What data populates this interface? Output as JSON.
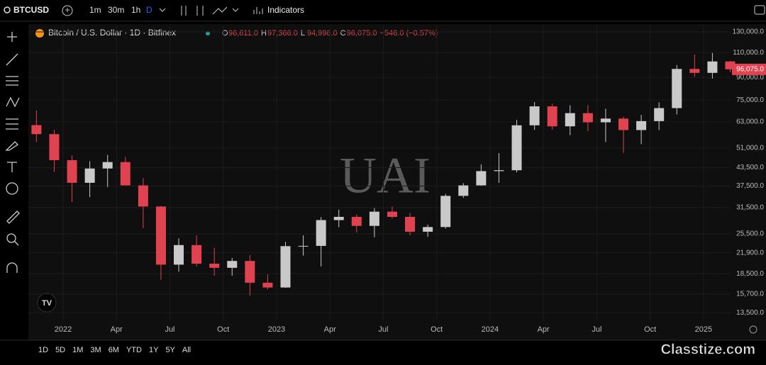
{
  "toolbar": {
    "symbol": "BTCUSD",
    "intervals": [
      "1m",
      "30m",
      "1h",
      "D"
    ],
    "indicators": "Indicators"
  },
  "legend": {
    "title": "Bitcoin / U.S. Dollar · 1D · Bitfinex",
    "ohlc": [
      {
        "key": "O",
        "text": "96,611.0"
      },
      {
        "key": "H",
        "text": "97,366.0"
      },
      {
        "key": "L",
        "text": "94,996.0"
      },
      {
        "key": "C",
        "text": "96,075.0"
      }
    ],
    "change": "−546.0 (−0.57%)"
  },
  "watermark": "UAI",
  "site_watermark": "Classtize.com",
  "ranges": [
    "1D",
    "5D",
    "1M",
    "3M",
    "6M",
    "YTD",
    "1Y",
    "5Y",
    "All"
  ],
  "chart_data": {
    "type": "candlestick",
    "log_scale": true,
    "grid": true,
    "up_color": "#c9c9c9",
    "down_color": "#e0434f",
    "last_price_label": "96,075.0",
    "categories": [
      null,
      null,
      "2022",
      null,
      null,
      "Apr",
      null,
      null,
      "Jul",
      null,
      null,
      "Oct",
      null,
      null,
      "2023",
      null,
      null,
      "Apr",
      null,
      null,
      "Jul",
      null,
      null,
      "Oct",
      null,
      null,
      "2024",
      null,
      null,
      "Apr",
      null,
      null,
      "Jul",
      null,
      null,
      "Oct",
      null,
      null,
      "2025",
      null
    ],
    "open": [
      61300,
      57000,
      46200,
      38500,
      43200,
      45500,
      37700,
      31800,
      19900,
      23300,
      20050,
      19400,
      20500,
      17200,
      16550,
      23100,
      23150,
      28500,
      29250,
      27200,
      30500,
      29250,
      25950,
      26950,
      34650,
      37700,
      42300,
      42600,
      61200,
      71300,
      60700,
      67500,
      62700,
      64600,
      58900,
      63300,
      70300,
      96400,
      93400,
      102400
    ],
    "high": [
      69000,
      59000,
      48000,
      45800,
      48200,
      47400,
      40000,
      31900,
      24600,
      25200,
      22800,
      21000,
      21500,
      18400,
      23900,
      25200,
      29200,
      31000,
      29800,
      31400,
      31800,
      30200,
      27500,
      35200,
      38400,
      44700,
      48900,
      63900,
      73800,
      72800,
      71900,
      72000,
      70000,
      65600,
      66500,
      73600,
      99500,
      108300,
      109600,
      102800
    ],
    "low": [
      53500,
      42000,
      33000,
      34300,
      37200,
      37700,
      26700,
      17600,
      18800,
      19600,
      18200,
      18200,
      15500,
      16300,
      16500,
      21400,
      19600,
      26900,
      25800,
      24800,
      28900,
      25200,
      24900,
      26600,
      34100,
      37600,
      38500,
      41900,
      59000,
      59100,
      56500,
      58400,
      53500,
      49000,
      52600,
      58900,
      66800,
      90500,
      89200,
      94000
    ],
    "close": [
      57000,
      46200,
      38500,
      43200,
      45500,
      37700,
      31800,
      19900,
      23300,
      20050,
      19400,
      20500,
      17200,
      16550,
      23100,
      23150,
      28500,
      29250,
      27200,
      30500,
      29250,
      25950,
      26950,
      34650,
      37700,
      42300,
      42600,
      61200,
      71300,
      60700,
      67500,
      62700,
      64600,
      58900,
      63300,
      70300,
      96400,
      93400,
      102400,
      96075
    ],
    "ylim": [
      12700,
      137600
    ],
    "yticks": [
      {
        "value": 130000,
        "label": "130,000.0"
      },
      {
        "value": 110000,
        "label": "110,000.0"
      },
      {
        "value": 90000,
        "label": "90,000.0"
      },
      {
        "value": 75000,
        "label": "75,000.0"
      },
      {
        "value": 63000,
        "label": "63,000.0"
      },
      {
        "value": 51000,
        "label": "51,000.0"
      },
      {
        "value": 43500,
        "label": "43,500.0"
      },
      {
        "value": 37500,
        "label": "37,500.0"
      },
      {
        "value": 31500,
        "label": "31,500.0"
      },
      {
        "value": 25500,
        "label": "25,500.0"
      },
      {
        "value": 21900,
        "label": "21,900.0"
      },
      {
        "value": 18500,
        "label": "18,500.0"
      },
      {
        "value": 15700,
        "label": "15,700.0"
      },
      {
        "value": 13500,
        "label": "13,500.0"
      }
    ]
  }
}
